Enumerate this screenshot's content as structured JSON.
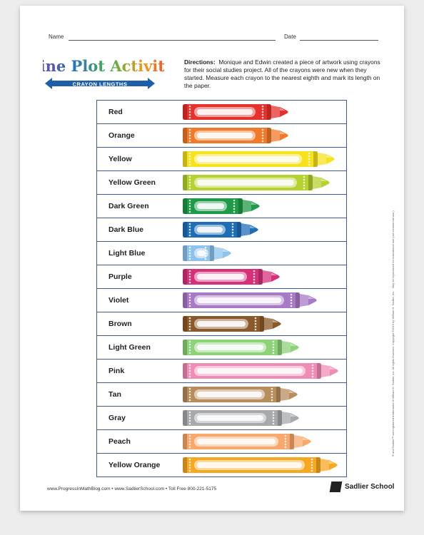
{
  "header": {
    "name_label": "Name",
    "date_label": "Date",
    "title": "Line Plot Activity",
    "subtitle": "CRAYON LENGTHS"
  },
  "directions": {
    "label": "Directions:",
    "text": "Monique and Edwin created a piece of artwork using crayons for their social studies project. All of the crayons were new when they started. Measure each crayon to the nearest eighth and mark its length on the paper."
  },
  "table": {
    "rows": [
      "Red",
      "Orange",
      "Yellow",
      "Yellow Green",
      "Dark Green",
      "Dark Blue",
      "Light Blue",
      "Purple",
      "Violet",
      "Brown",
      "Light Green",
      "Pink",
      "Tan",
      "Gray",
      "Peach",
      "Yellow Orange"
    ]
  },
  "footer": {
    "links": "www.ProgressInMathBlog.com  •  www.SadlierSchool.com  •  Toll Free 800-221-5175",
    "brand": "Sadlier School",
    "legal": [
      "® and Sadlier™ are registered trademarks of William H. Sadlier, Inc. All rights reserved. Copyright ©2016 by William H. Sadlier, Inc.",
      "May be reproduced for educational use (not commercial use.)"
    ]
  }
}
